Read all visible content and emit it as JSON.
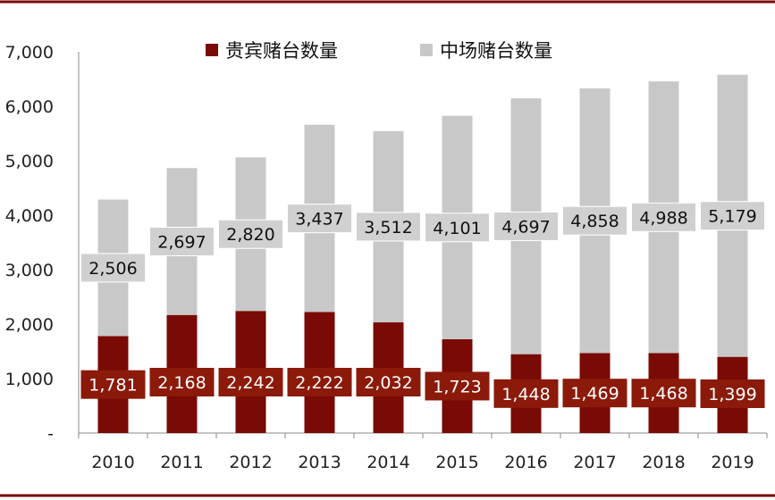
{
  "colors": {
    "vip": "#7a0a05",
    "vip_label_bg": "#8b1a0b",
    "mass": "#c8c8c8",
    "mass_label_bg": "#d0d0d0",
    "frame": "#7a0a05",
    "axis": "#888888"
  },
  "chart_data": {
    "type": "bar",
    "stacked": true,
    "categories": [
      "2010",
      "2011",
      "2012",
      "2013",
      "2014",
      "2015",
      "2016",
      "2017",
      "2018",
      "2019"
    ],
    "series": [
      {
        "name": "贵宾赌台数量",
        "values": [
          1781,
          2168,
          2242,
          2222,
          2032,
          1723,
          1448,
          1469,
          1468,
          1399
        ],
        "labels": [
          "1,781",
          "2,168",
          "2,242",
          "2,222",
          "2,032",
          "1,723",
          "1,448",
          "1,469",
          "1,468",
          "1,399"
        ]
      },
      {
        "name": "中场赌台数量",
        "values": [
          2506,
          2697,
          2820,
          3437,
          3512,
          4101,
          4697,
          4858,
          4988,
          5179
        ],
        "labels": [
          "2,506",
          "2,697",
          "2,820",
          "3,437",
          "3,512",
          "4,101",
          "4,697",
          "4,858",
          "4,988",
          "5,179"
        ]
      }
    ],
    "yticks": [
      "-",
      "1,000",
      "2,000",
      "3,000",
      "4,000",
      "5,000",
      "6,000",
      "7,000"
    ],
    "ylim": [
      0,
      7000
    ],
    "grid": false,
    "legend": "top"
  }
}
